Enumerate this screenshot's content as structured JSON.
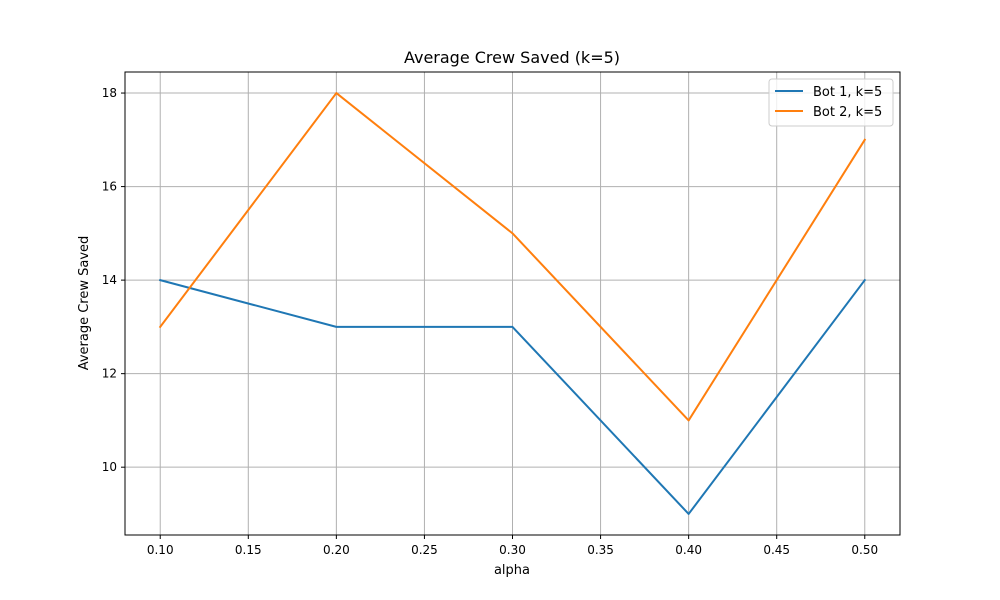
{
  "chart_data": {
    "type": "line",
    "title": "Average Crew Saved (k=5)",
    "xlabel": "alpha",
    "ylabel": "Average Crew Saved",
    "x": [
      0.1,
      0.2,
      0.3,
      0.4,
      0.5
    ],
    "series": [
      {
        "name": "Bot 1, k=5",
        "values": [
          14,
          13,
          13,
          9,
          14
        ],
        "color": "#1f77b4"
      },
      {
        "name": "Bot 2, k=5",
        "values": [
          13,
          18,
          15,
          11,
          17
        ],
        "color": "#ff7f0e"
      }
    ],
    "xlim": [
      0.08,
      0.52
    ],
    "ylim": [
      8.55,
      18.45
    ],
    "xticks": [
      "0.10",
      "0.15",
      "0.20",
      "0.25",
      "0.30",
      "0.35",
      "0.40",
      "0.45",
      "0.50"
    ],
    "yticks": [
      "10",
      "12",
      "14",
      "16",
      "18"
    ],
    "grid": true,
    "legend": "top-right"
  }
}
